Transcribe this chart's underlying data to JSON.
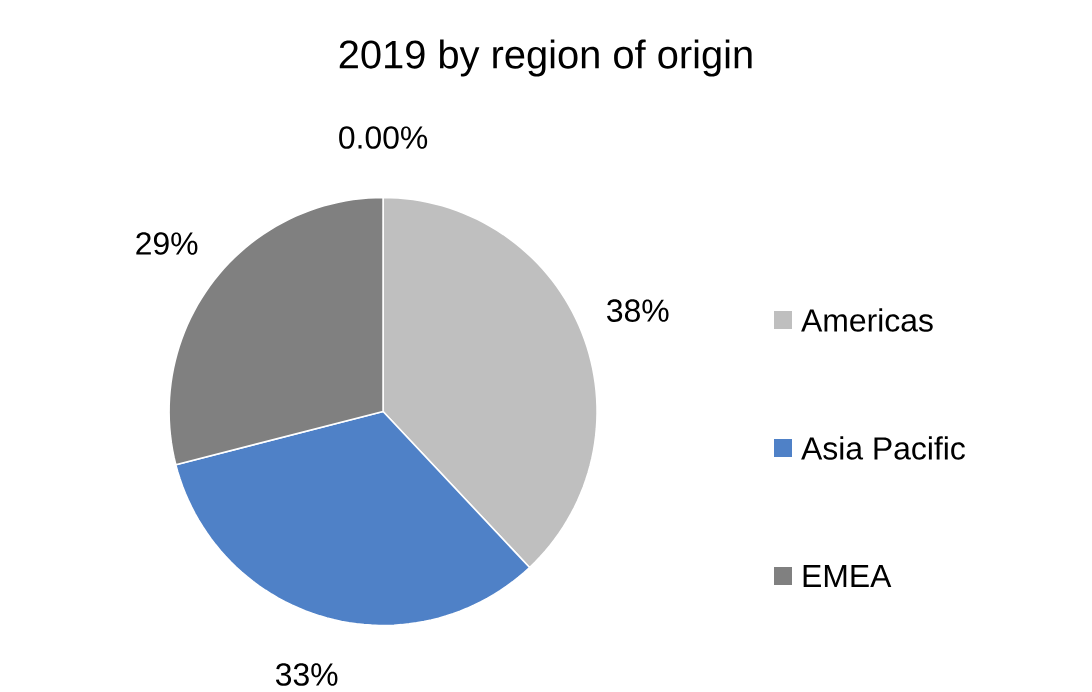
{
  "chart_data": {
    "type": "pie",
    "title": "2019 by region of origin",
    "categories": [
      "Americas",
      "Asia Pacific",
      "EMEA",
      null
    ],
    "values": [
      38,
      33,
      29,
      0
    ],
    "colors": [
      "#bfbfbf",
      "#4f81c7",
      "#808080",
      "#a5a5a5"
    ],
    "value_labels": [
      "38%",
      "33%",
      "29%",
      "0.00%"
    ],
    "legend": "right"
  }
}
